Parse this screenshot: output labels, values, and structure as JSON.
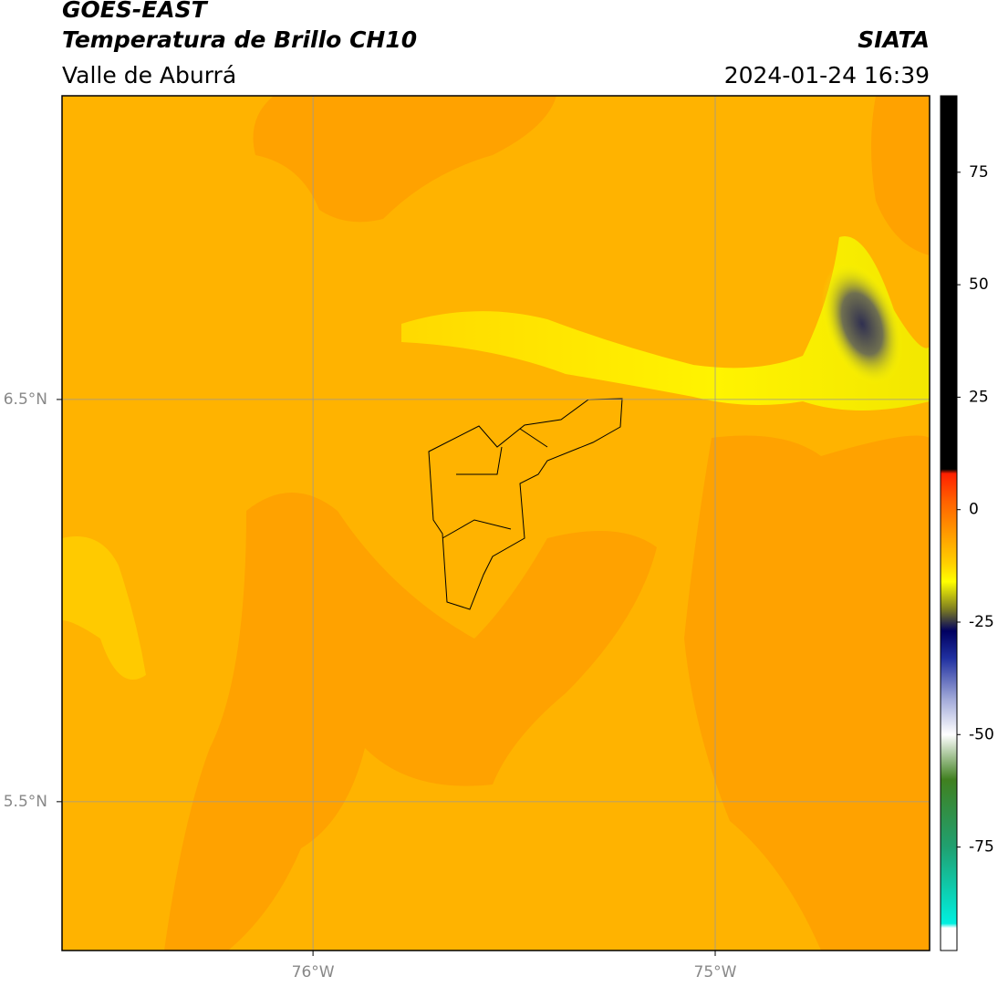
{
  "header": {
    "title": "GOES-EAST",
    "subtitle": "Temperatura de Brillo CH10",
    "region": "Valle de Aburrá",
    "source": "SIATA",
    "datetime": "2024-01-24 16:39"
  },
  "map": {
    "xlim": [
      -76.624,
      -74.467
    ],
    "ylim": [
      5.13,
      7.255
    ],
    "xticks": [
      {
        "value": -76,
        "label": "76°W"
      },
      {
        "value": -75,
        "label": "75°W"
      }
    ],
    "yticks": [
      {
        "value": 6.5,
        "label": "6.5°N"
      },
      {
        "value": 5.5,
        "label": "5.5°N"
      }
    ],
    "grid": true
  },
  "colorbar": {
    "lim": [
      -98,
      92
    ],
    "ticks": [
      75,
      50,
      25,
      0,
      -25,
      -50,
      -75
    ],
    "stops": [
      {
        "value": 92,
        "color": "#000000"
      },
      {
        "value": 9,
        "color": "#000000"
      },
      {
        "value": 8,
        "color": "#ff2000"
      },
      {
        "value": 2,
        "color": "#ff6000"
      },
      {
        "value": -6,
        "color": "#ffa000"
      },
      {
        "value": -12,
        "color": "#ffd000"
      },
      {
        "value": -16,
        "color": "#ffff00"
      },
      {
        "value": -22,
        "color": "#808020"
      },
      {
        "value": -27,
        "color": "#000060"
      },
      {
        "value": -33,
        "color": "#2030a0"
      },
      {
        "value": -42,
        "color": "#a0a8d8"
      },
      {
        "value": -50,
        "color": "#ffffff"
      },
      {
        "value": -60,
        "color": "#408020"
      },
      {
        "value": -75,
        "color": "#20a070"
      },
      {
        "value": -92,
        "color": "#00f0e0"
      },
      {
        "value": -93,
        "color": "#ffffff"
      },
      {
        "value": -98,
        "color": "#ffffff"
      }
    ]
  }
}
